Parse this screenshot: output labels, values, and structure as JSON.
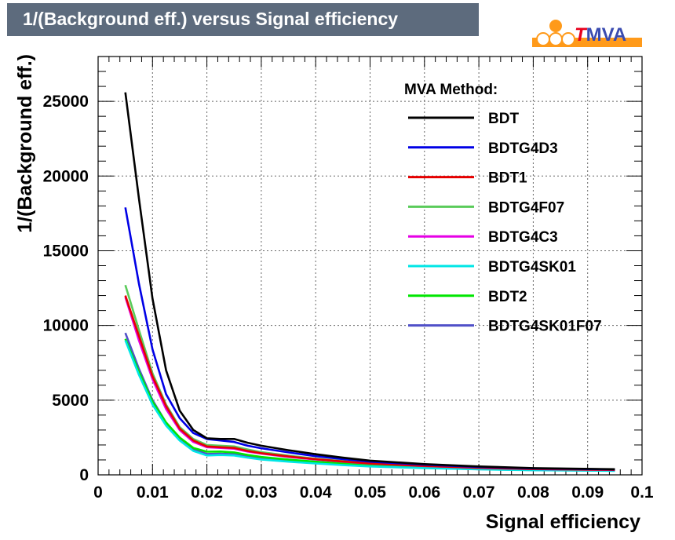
{
  "title": "1/(Background eff.) versus Signal efficiency",
  "logo": {
    "text_t": "T",
    "text_rest": "MVA",
    "accent_color": "#ff9a1a",
    "t_color": "#e8001c",
    "text_color": "#3a4bb0"
  },
  "chart_data": {
    "type": "line",
    "title": "1/(Background eff.) versus Signal efficiency",
    "xlabel": "Signal efficiency",
    "ylabel": "1/(Background eff.)",
    "xlim": [
      0,
      0.1
    ],
    "ylim": [
      0,
      28000
    ],
    "xticks": [
      "0",
      "0.01",
      "0.02",
      "0.03",
      "0.04",
      "0.05",
      "0.06",
      "0.07",
      "0.08",
      "0.09",
      "0.1"
    ],
    "yticks": [
      "0",
      "5000",
      "10000",
      "15000",
      "20000",
      "25000"
    ],
    "grid": true,
    "legend_title": "MVA Method:",
    "legend_position": "top-right",
    "x": [
      0.005,
      0.0075,
      0.01,
      0.0125,
      0.015,
      0.0175,
      0.02,
      0.0225,
      0.025,
      0.0275,
      0.03,
      0.035,
      0.04,
      0.045,
      0.05,
      0.06,
      0.07,
      0.08,
      0.095
    ],
    "series": [
      {
        "name": "BDT",
        "color": "#000000",
        "values": [
          25600,
          18500,
          11800,
          7000,
          4300,
          3000,
          2450,
          2400,
          2400,
          2150,
          1950,
          1650,
          1380,
          1150,
          950,
          720,
          560,
          450,
          380
        ]
      },
      {
        "name": "BDTG4D3",
        "color": "#0000e6",
        "values": [
          17900,
          12800,
          8400,
          5400,
          3800,
          2800,
          2400,
          2300,
          2200,
          1950,
          1780,
          1500,
          1250,
          1050,
          880,
          680,
          530,
          430,
          360
        ]
      },
      {
        "name": "BDT1",
        "color": "#e60000",
        "values": [
          12000,
          9300,
          6600,
          4600,
          3100,
          2300,
          1900,
          1850,
          1800,
          1600,
          1450,
          1230,
          1050,
          900,
          760,
          600,
          470,
          390,
          330
        ]
      },
      {
        "name": "BDTG4F07",
        "color": "#5acb5a",
        "values": [
          12700,
          9700,
          6800,
          4700,
          3200,
          2400,
          2000,
          1950,
          1900,
          1700,
          1520,
          1280,
          1080,
          920,
          780,
          610,
          480,
          395,
          335
        ]
      },
      {
        "name": "BDTG4C3",
        "color": "#e600e6",
        "values": [
          11900,
          9000,
          6400,
          4400,
          3000,
          2200,
          1850,
          1800,
          1750,
          1560,
          1420,
          1200,
          1030,
          880,
          750,
          590,
          465,
          385,
          325
        ]
      },
      {
        "name": "BDTG4SK01",
        "color": "#00e6e6",
        "values": [
          9000,
          6700,
          4700,
          3300,
          2300,
          1600,
          1300,
          1330,
          1300,
          1150,
          1030,
          880,
          760,
          650,
          560,
          450,
          370,
          310,
          270
        ]
      },
      {
        "name": "BDT2",
        "color": "#00e600",
        "values": [
          9100,
          6900,
          4900,
          3500,
          2500,
          1800,
          1550,
          1560,
          1500,
          1330,
          1200,
          1020,
          880,
          760,
          650,
          520,
          420,
          350,
          300
        ]
      },
      {
        "name": "BDTG4SK01F07",
        "color": "#5050c8",
        "values": [
          9500,
          7100,
          5000,
          3500,
          2450,
          1700,
          1400,
          1420,
          1380,
          1220,
          1090,
          930,
          800,
          690,
          590,
          470,
          380,
          320,
          280
        ]
      }
    ]
  }
}
